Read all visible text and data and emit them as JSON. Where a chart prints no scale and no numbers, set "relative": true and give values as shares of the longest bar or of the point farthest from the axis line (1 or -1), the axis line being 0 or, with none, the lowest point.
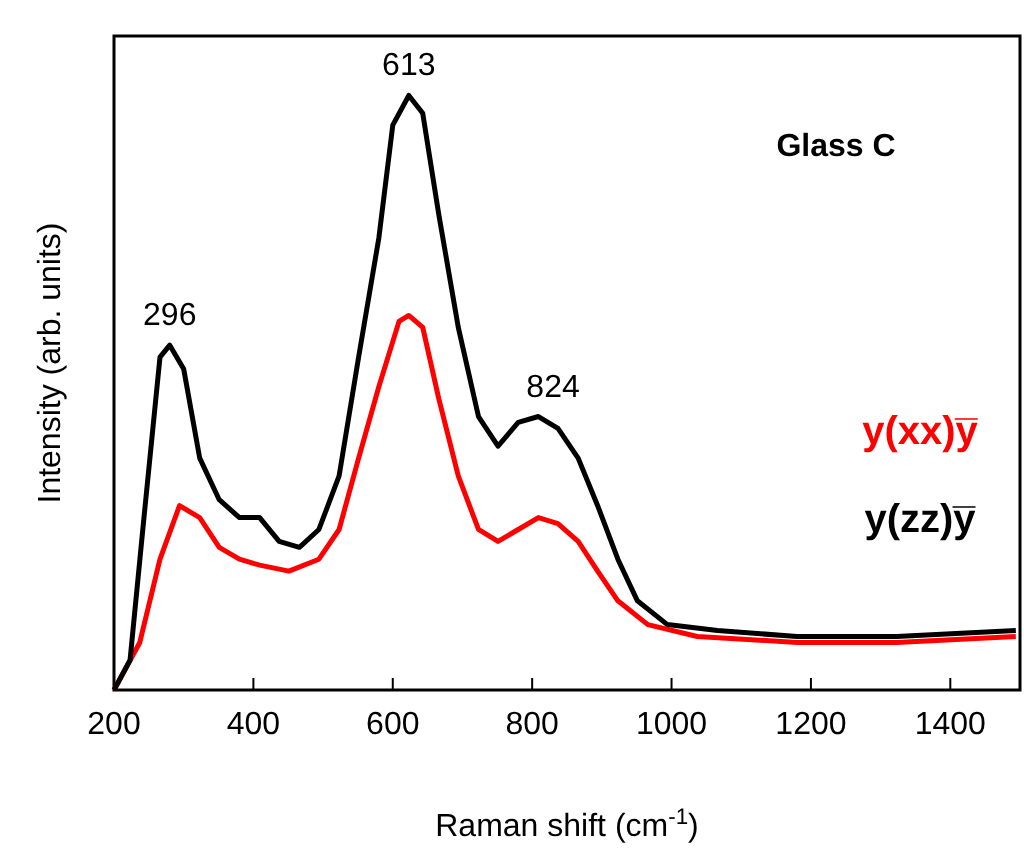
{
  "chart_data": {
    "type": "line",
    "relative": true,
    "xlabel": "Raman shift (cm$^{-1}$)",
    "ylabel": "Intensity (arb. units)",
    "xlim": [
      200,
      1500
    ],
    "xticks": [
      200,
      400,
      600,
      800,
      1000,
      1200,
      1400
    ],
    "legend": "right",
    "line_style": "solid",
    "marker": "none",
    "annotations": [
      "Glass C",
      {
        "text": "296",
        "x": 280,
        "y": 0.58
      },
      {
        "text": "613",
        "x": 623,
        "y": 1.0
      },
      {
        "text": "824",
        "x": 830,
        "y": 0.46
      }
    ],
    "series": [
      {
        "name": "y(xx)y̅",
        "color": "#ff0000",
        "x": [
          200,
          237,
          266,
          294,
          323,
          351,
          380,
          409,
          451,
          494,
          523,
          551,
          580,
          609,
          623,
          643,
          666,
          694,
          723,
          751,
          780,
          809,
          837,
          866,
          894,
          923,
          966,
          1037,
          1180,
          1323,
          1494
        ],
        "values": [
          0,
          0.08,
          0.22,
          0.31,
          0.29,
          0.24,
          0.22,
          0.21,
          0.2,
          0.22,
          0.27,
          0.39,
          0.51,
          0.62,
          0.63,
          0.61,
          0.49,
          0.36,
          0.27,
          0.25,
          0.27,
          0.29,
          0.28,
          0.25,
          0.2,
          0.15,
          0.11,
          0.09,
          0.08,
          0.08,
          0.09
        ]
      },
      {
        "name": "y(zz)y̅",
        "color": "#000000",
        "x": [
          200,
          223,
          243,
          266,
          280,
          300,
          323,
          351,
          380,
          409,
          437,
          466,
          494,
          523,
          551,
          580,
          600,
          623,
          643,
          666,
          694,
          723,
          751,
          780,
          809,
          837,
          866,
          894,
          923,
          951,
          994,
          1066,
          1180,
          1323,
          1494
        ],
        "values": [
          0,
          0.05,
          0.29,
          0.56,
          0.58,
          0.54,
          0.39,
          0.32,
          0.29,
          0.29,
          0.25,
          0.24,
          0.27,
          0.36,
          0.56,
          0.76,
          0.95,
          1.0,
          0.97,
          0.8,
          0.61,
          0.46,
          0.41,
          0.45,
          0.46,
          0.44,
          0.39,
          0.31,
          0.22,
          0.15,
          0.11,
          0.1,
          0.09,
          0.09,
          0.1
        ]
      }
    ]
  }
}
